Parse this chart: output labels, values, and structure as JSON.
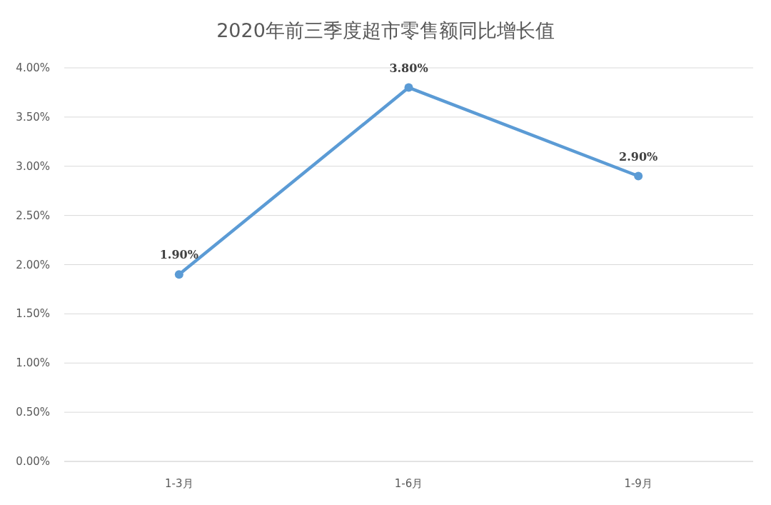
{
  "chart_data": {
    "type": "line",
    "title": "2020年前三季度超市零售额同比增长值",
    "categories": [
      "1-3月",
      "1-6月",
      "1-9月"
    ],
    "series": [
      {
        "color": "#5b9bd5",
        "values": [
          1.9,
          3.8,
          2.9
        ],
        "value_labels": [
          "1.90%",
          "3.80%",
          "2.90%"
        ]
      }
    ],
    "ylim": [
      0,
      4
    ],
    "yticks": [
      {
        "value": 0,
        "label": "0.00%"
      },
      {
        "value": 0.5,
        "label": "0.50%"
      },
      {
        "value": 1,
        "label": "1.00%"
      },
      {
        "value": 1.5,
        "label": "1.50%"
      },
      {
        "value": 2,
        "label": "2.00%"
      },
      {
        "value": 2.5,
        "label": "2.50%"
      },
      {
        "value": 3,
        "label": "3.00%"
      },
      {
        "value": 3.5,
        "label": "3.50%"
      },
      {
        "value": 4,
        "label": "4.00%"
      }
    ],
    "grid": "y",
    "marker": "circle"
  }
}
